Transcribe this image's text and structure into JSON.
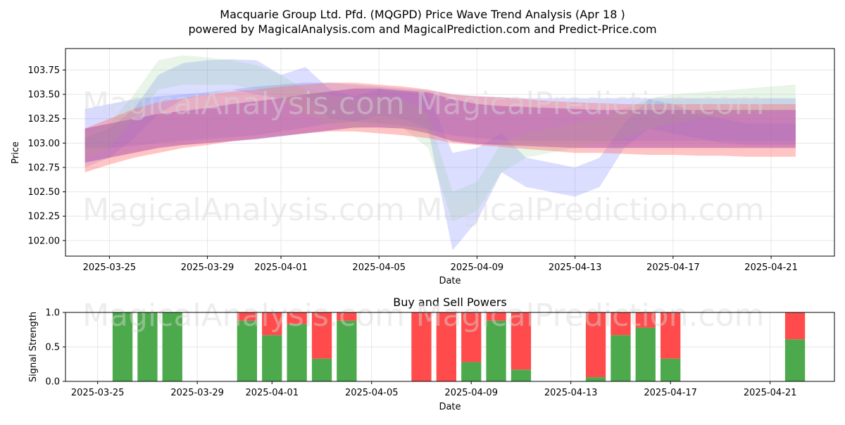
{
  "header": {
    "title_line1": "Macquarie Group Ltd. Pfd. (MQGPD) Price Wave Trend Analysis (Apr 18 )",
    "title_line2": "powered by MagicalAnalysis.com and MagicalPrediction.com and Predict-Price.com"
  },
  "watermarks": [
    "MagicalAnalysis.com",
    "MagicalPrediction.com"
  ],
  "colors": {
    "buy": "#4caa4c",
    "sell": "#ff4b4b",
    "blue_band": "#4d5cff",
    "purple_band": "#6a1fc8",
    "red_band": "#ff6b6b",
    "green_band": "#7fc87f"
  },
  "chart_data": [
    {
      "type": "area",
      "title": "",
      "xlabel": "Date",
      "ylabel": "Price",
      "x_ticks": [
        "2025-03-25",
        "2025-03-29",
        "2025-04-01",
        "2025-04-05",
        "2025-04-09",
        "2025-04-13",
        "2025-04-17",
        "2025-04-21"
      ],
      "y_ticks": [
        "102.00",
        "102.25",
        "102.50",
        "102.75",
        "103.00",
        "103.25",
        "103.50",
        "103.75"
      ],
      "xlim": [
        "2025-03-23T05:00",
        "2025-04-23T14:00"
      ],
      "ylim": [
        101.84,
        103.97
      ],
      "grid": true,
      "dates": [
        "2025-03-24",
        "2025-03-25",
        "2025-03-26",
        "2025-03-27",
        "2025-03-28",
        "2025-03-29",
        "2025-03-30",
        "2025-03-31",
        "2025-04-01",
        "2025-04-02",
        "2025-04-03",
        "2025-04-04",
        "2025-04-05",
        "2025-04-06",
        "2025-04-07",
        "2025-04-08",
        "2025-04-09",
        "2025-04-10",
        "2025-04-11",
        "2025-04-12",
        "2025-04-13",
        "2025-04-14",
        "2025-04-15",
        "2025-04-16",
        "2025-04-17",
        "2025-04-18",
        "2025-04-19",
        "2025-04-20",
        "2025-04-21",
        "2025-04-22"
      ],
      "series": [
        {
          "color": "purple",
          "opacity": 0.45,
          "upper": [
            103.15,
            103.2,
            103.25,
            103.3,
            103.33,
            103.36,
            103.4,
            103.43,
            103.46,
            103.5,
            103.53,
            103.56,
            103.56,
            103.54,
            103.52,
            103.45,
            103.4,
            103.38,
            103.37,
            103.36,
            103.35,
            103.34,
            103.34,
            103.34,
            103.34,
            103.34,
            103.34,
            103.34,
            103.34,
            103.34
          ],
          "lower": [
            102.8,
            102.85,
            102.9,
            102.95,
            102.98,
            103.0,
            103.02,
            103.04,
            103.07,
            103.1,
            103.13,
            103.16,
            103.16,
            103.15,
            103.1,
            103.02,
            102.99,
            102.98,
            102.97,
            102.96,
            102.95,
            102.95,
            102.95,
            102.95,
            102.95,
            102.95,
            102.95,
            102.95,
            102.95,
            102.95
          ]
        },
        {
          "color": "blue",
          "opacity": 0.22,
          "upper": [
            103.35,
            103.4,
            103.45,
            103.48,
            103.5,
            103.52,
            103.55,
            103.58,
            103.6,
            103.62,
            103.62,
            103.6,
            103.58,
            103.56,
            103.54,
            103.5,
            103.48,
            103.47,
            103.46,
            103.46,
            103.46,
            103.46,
            103.46,
            103.46,
            103.46,
            103.46,
            103.46,
            103.46,
            103.46,
            103.46
          ],
          "lower": [
            102.95,
            102.95,
            102.97,
            103.0,
            103.02,
            103.04,
            103.06,
            103.08,
            103.12,
            103.16,
            103.2,
            103.22,
            103.2,
            103.18,
            103.14,
            103.08,
            103.05,
            103.03,
            103.02,
            103.02,
            103.02,
            103.02,
            103.02,
            103.02,
            103.02,
            103.02,
            103.02,
            103.02,
            103.02,
            103.02
          ]
        },
        {
          "color": "blue",
          "opacity": 0.2,
          "upper": [
            103.05,
            103.15,
            103.35,
            103.7,
            103.82,
            103.85,
            103.86,
            103.85,
            103.7,
            103.78,
            103.55,
            103.48,
            103.55,
            103.52,
            103.5,
            102.9,
            102.95,
            103.1,
            102.85,
            102.8,
            102.75,
            102.85,
            103.2,
            103.45,
            103.4,
            103.3,
            103.25,
            103.2,
            103.2,
            103.2
          ],
          "lower": [
            102.75,
            102.85,
            103.05,
            103.3,
            103.45,
            103.5,
            103.55,
            103.5,
            103.45,
            103.5,
            103.25,
            103.22,
            103.28,
            103.25,
            103.15,
            101.9,
            102.2,
            102.7,
            102.55,
            102.5,
            102.45,
            102.55,
            102.95,
            103.15,
            103.1,
            103.05,
            103.0,
            102.98,
            102.98,
            102.98
          ]
        },
        {
          "color": "green",
          "opacity": 0.18,
          "upper": [
            103.1,
            103.2,
            103.5,
            103.85,
            103.9,
            103.88,
            103.85,
            103.8,
            103.7,
            103.55,
            103.5,
            103.45,
            103.48,
            103.45,
            103.3,
            102.5,
            102.6,
            103.0,
            103.1,
            103.15,
            103.2,
            103.25,
            103.35,
            103.45,
            103.5,
            103.52,
            103.54,
            103.56,
            103.58,
            103.6
          ],
          "lower": [
            102.85,
            102.95,
            103.25,
            103.55,
            103.6,
            103.6,
            103.6,
            103.55,
            103.45,
            103.3,
            103.2,
            103.15,
            103.18,
            103.15,
            102.95,
            102.2,
            102.3,
            102.7,
            102.85,
            102.9,
            102.95,
            103.0,
            103.05,
            103.15,
            103.2,
            103.25,
            103.28,
            103.3,
            103.32,
            103.34
          ]
        },
        {
          "color": "red",
          "opacity": 0.4,
          "upper": [
            103.15,
            103.25,
            103.35,
            103.42,
            103.46,
            103.5,
            103.53,
            103.55,
            103.58,
            103.6,
            103.62,
            103.62,
            103.6,
            103.58,
            103.55,
            103.5,
            103.48,
            103.47,
            103.45,
            103.43,
            103.42,
            103.41,
            103.4,
            103.4,
            103.4,
            103.4,
            103.4,
            103.4,
            103.4,
            103.4
          ],
          "lower": [
            102.7,
            102.78,
            102.85,
            102.9,
            102.95,
            102.98,
            103.02,
            103.05,
            103.08,
            103.1,
            103.12,
            103.12,
            103.1,
            103.08,
            103.05,
            103.0,
            102.98,
            102.96,
            102.94,
            102.92,
            102.9,
            102.9,
            102.89,
            102.88,
            102.88,
            102.87,
            102.87,
            102.86,
            102.86,
            102.86
          ]
        }
      ]
    },
    {
      "type": "bar",
      "title": "Buy and Sell Powers",
      "xlabel": "Date",
      "ylabel": "Signal Strength",
      "ylim": [
        0,
        1
      ],
      "y_ticks": [
        "0.0",
        "0.5",
        "1.0"
      ],
      "x_ticks": [
        "2025-03-25",
        "2025-03-29",
        "2025-04-01",
        "2025-04-05",
        "2025-04-09",
        "2025-04-13",
        "2025-04-17",
        "2025-04-21"
      ],
      "grid": true,
      "legend": "none",
      "categories": [
        "2025-03-26",
        "2025-03-27",
        "2025-03-28",
        "2025-03-31",
        "2025-04-01",
        "2025-04-02",
        "2025-04-03",
        "2025-04-04",
        "2025-04-07",
        "2025-04-08",
        "2025-04-09",
        "2025-04-10",
        "2025-04-11",
        "2025-04-14",
        "2025-04-15",
        "2025-04-16",
        "2025-04-17",
        "2025-04-22"
      ],
      "series": [
        {
          "name": "buy",
          "values": [
            1.0,
            1.0,
            1.0,
            0.88,
            0.67,
            0.83,
            0.33,
            0.88,
            0.0,
            0.0,
            0.28,
            0.88,
            0.17,
            0.06,
            0.67,
            0.78,
            0.33,
            0.61
          ]
        },
        {
          "name": "sell",
          "values": [
            0.0,
            0.0,
            0.0,
            0.12,
            0.33,
            0.17,
            0.67,
            0.12,
            1.0,
            1.0,
            0.72,
            0.12,
            0.83,
            0.94,
            0.33,
            0.22,
            0.67,
            0.39
          ]
        }
      ]
    }
  ]
}
